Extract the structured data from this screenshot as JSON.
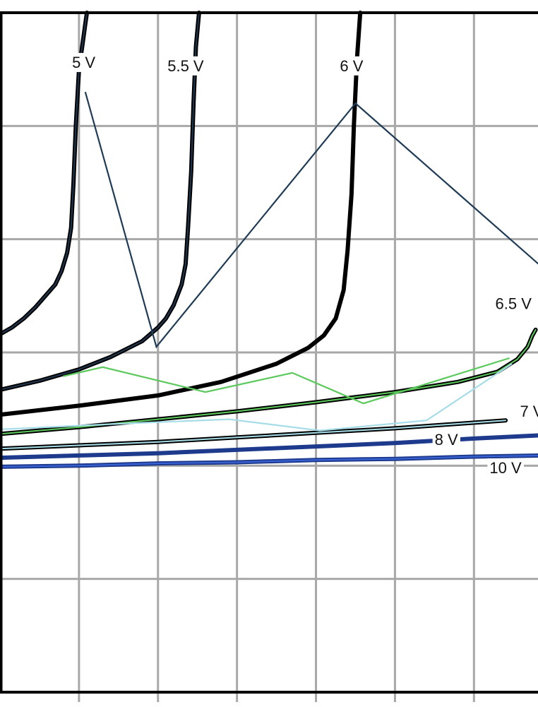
{
  "chart_data": {
    "type": "line",
    "title": "",
    "xlabel": "",
    "ylabel": "",
    "xlim": [
      0,
      6.9
    ],
    "ylim": [
      0,
      6
    ],
    "grid": true,
    "colors": {
      "grid": "#a8a8a8",
      "frame": "#000000",
      "curve": "#000000",
      "curve_highlight_dark": "#20374f",
      "curve_highlight_green": "#5cc95c",
      "curve_highlight_light_blue": "#a6dde8",
      "curve_blue": "#1d3a8c",
      "curve_blue_highlight": "#3a63d6",
      "zigzag_dark": "#1f3b55",
      "zigzag_green": "#5cc95c",
      "zigzag_light_blue": "#a6dde8"
    },
    "series": [
      {
        "name": "5 V",
        "color_key": "curve",
        "highlight_key": "curve_highlight_dark",
        "x": [
          0.0,
          0.15,
          0.3,
          0.45,
          0.6,
          0.7,
          0.78,
          0.85,
          0.9,
          0.93,
          0.96,
          1.0,
          1.05,
          1.08,
          1.1
        ],
        "y": [
          3.16,
          3.22,
          3.3,
          3.4,
          3.52,
          3.6,
          3.72,
          3.88,
          4.1,
          4.5,
          5.0,
          5.5,
          5.75,
          5.9,
          6.0
        ]
      },
      {
        "name": "5.5 V",
        "color_key": "curve",
        "highlight_key": "curve_highlight_dark",
        "x": [
          0.0,
          0.5,
          1.0,
          1.4,
          1.8,
          2.0,
          2.1,
          2.2,
          2.3,
          2.35,
          2.38,
          2.42,
          2.45,
          2.48,
          2.52
        ],
        "y": [
          2.67,
          2.75,
          2.85,
          2.96,
          3.1,
          3.22,
          3.3,
          3.42,
          3.6,
          3.78,
          4.1,
          4.6,
          5.2,
          5.7,
          6.0
        ]
      },
      {
        "name": "6 V",
        "color_key": "curve",
        "highlight_key": "none",
        "x": [
          0.0,
          1.0,
          2.0,
          2.8,
          3.5,
          3.9,
          4.1,
          4.25,
          4.35,
          4.4,
          4.45,
          4.48,
          4.52,
          4.56
        ],
        "y": [
          2.45,
          2.53,
          2.62,
          2.74,
          2.9,
          3.04,
          3.15,
          3.3,
          3.55,
          3.9,
          4.4,
          5.0,
          5.6,
          6.0
        ]
      },
      {
        "name": "6.5 V",
        "color_key": "curve",
        "highlight_key": "curve_highlight_green",
        "x": [
          0.0,
          1.0,
          2.0,
          3.0,
          4.0,
          5.0,
          5.8,
          6.3,
          6.55,
          6.68,
          6.74,
          6.78
        ],
        "y": [
          2.28,
          2.34,
          2.41,
          2.48,
          2.56,
          2.65,
          2.74,
          2.83,
          2.94,
          3.05,
          3.15,
          3.2
        ]
      },
      {
        "name": "7 V",
        "color_key": "curve",
        "highlight_key": "curve_highlight_light_blue",
        "x": [
          0.0,
          1.0,
          2.0,
          3.0,
          4.0,
          5.0,
          5.8,
          6.4
        ],
        "y": [
          2.15,
          2.18,
          2.21,
          2.25,
          2.29,
          2.33,
          2.37,
          2.4
        ]
      },
      {
        "name": "8 V",
        "color_key": "curve_blue",
        "highlight_key": "none",
        "x": [
          0.0,
          1.0,
          2.0,
          3.0,
          4.0,
          5.0,
          6.0,
          6.9
        ],
        "y": [
          2.07,
          2.09,
          2.11,
          2.14,
          2.17,
          2.2,
          2.24,
          2.27
        ]
      },
      {
        "name": "10 V",
        "color_key": "curve_blue",
        "highlight_key": "curve_blue_highlight",
        "x": [
          0.0,
          1.0,
          2.0,
          3.0,
          4.0,
          5.0,
          6.0,
          6.9
        ],
        "y": [
          1.99,
          2.0,
          2.02,
          2.03,
          2.05,
          2.06,
          2.08,
          2.09
        ]
      }
    ],
    "zigzags": [
      {
        "color_key": "zigzag_dark",
        "x": [
          1.08,
          1.98,
          4.5,
          6.9
        ],
        "y": [
          5.3,
          3.05,
          5.2,
          3.73
        ]
      },
      {
        "color_key": "zigzag_green",
        "x": [
          0.8,
          1.3,
          2.6,
          3.7,
          4.6,
          6.45
        ],
        "y": [
          2.79,
          2.87,
          2.65,
          2.82,
          2.55,
          2.95
        ]
      },
      {
        "color_key": "zigzag_light_blue",
        "x": [
          0.0,
          1.5,
          2.9,
          4.05,
          5.4,
          6.48
        ],
        "y": [
          2.32,
          2.37,
          2.41,
          2.31,
          2.4,
          2.9
        ]
      }
    ],
    "annotations": [
      {
        "text": "5 V",
        "x": 1.06,
        "y": 5.55
      },
      {
        "text": "5.5 V",
        "x": 2.35,
        "y": 5.52
      },
      {
        "text": "6 V",
        "x": 4.45,
        "y": 5.52
      },
      {
        "text": "6.5 V",
        "x": 6.5,
        "y": 3.42
      },
      {
        "text": "7 V",
        "x": 6.73,
        "y": 2.47
      },
      {
        "text": "8 V",
        "x": 5.65,
        "y": 2.22
      },
      {
        "text": "10 V",
        "x": 6.4,
        "y": 1.97
      }
    ]
  }
}
